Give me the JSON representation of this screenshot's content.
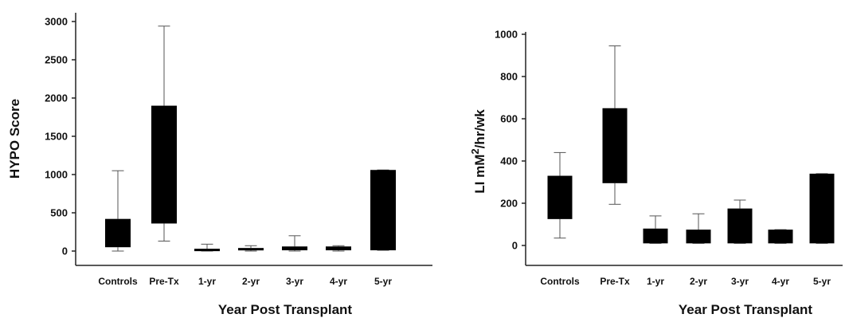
{
  "chart_data": [
    {
      "type": "box",
      "xlabel": "Year Post Transplant",
      "ylabel": "HYPO Score",
      "ylabel_sup": "",
      "ylabel_tail": "",
      "ylim": [
        0,
        3000
      ],
      "yticks": [
        0,
        500,
        1000,
        1500,
        2000,
        2500,
        3000
      ],
      "categories": [
        "Controls",
        "Pre-Tx",
        "1-yr",
        "2-yr",
        "3-yr",
        "4-yr",
        "5-yr"
      ],
      "boxes": [
        {
          "low": 0,
          "q1": 50,
          "q3": 420,
          "high": 1050
        },
        {
          "low": 130,
          "q1": 360,
          "q3": 1900,
          "high": 2940
        },
        {
          "low": 0,
          "q1": 10,
          "q3": 30,
          "high": 90
        },
        {
          "low": 0,
          "q1": 10,
          "q3": 40,
          "high": 70
        },
        {
          "low": 0,
          "q1": 10,
          "q3": 60,
          "high": 200
        },
        {
          "low": 0,
          "q1": 10,
          "q3": 60,
          "high": 70
        },
        {
          "low": 10,
          "q1": 10,
          "q3": 1060,
          "high": 1060
        }
      ]
    },
    {
      "type": "box",
      "xlabel": "Year Post Transplant",
      "ylabel": "LI mM",
      "ylabel_sup": "2",
      "ylabel_tail": "/hr/wk",
      "ylim": [
        0,
        1000
      ],
      "yticks": [
        0,
        200,
        400,
        600,
        800,
        1000
      ],
      "categories": [
        "Controls",
        "Pre-Tx",
        "1-yr",
        "2-yr",
        "3-yr",
        "4-yr",
        "5-yr"
      ],
      "boxes": [
        {
          "low": 35,
          "q1": 125,
          "q3": 330,
          "high": 440
        },
        {
          "low": 195,
          "q1": 295,
          "q3": 650,
          "high": 945
        },
        {
          "low": 10,
          "q1": 10,
          "q3": 80,
          "high": 140
        },
        {
          "low": 10,
          "q1": 10,
          "q3": 75,
          "high": 150
        },
        {
          "low": 10,
          "q1": 10,
          "q3": 175,
          "high": 215
        },
        {
          "low": 10,
          "q1": 10,
          "q3": 75,
          "high": 75
        },
        {
          "low": 10,
          "q1": 10,
          "q3": 340,
          "high": 340
        }
      ]
    }
  ]
}
